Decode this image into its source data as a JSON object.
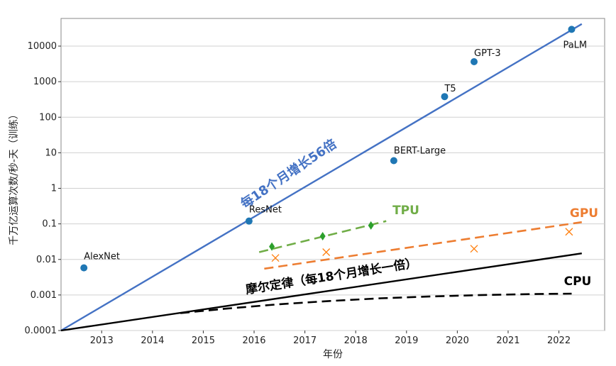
{
  "chart_data": {
    "type": "scatter",
    "xlabel": "年份",
    "ylabel": "千万亿运算次数/秒-天（训练）",
    "x_ticks": [
      "2013",
      "2014",
      "2015",
      "2016",
      "2017",
      "2018",
      "2019",
      "2020",
      "2021",
      "2022"
    ],
    "y_ticks": [
      "0.0001",
      "0.001",
      "0.01",
      "0.1",
      "1",
      "10",
      "100",
      "1000",
      "10000"
    ],
    "xlim": [
      2012.2,
      2022.9
    ],
    "ylim": [
      0.0001,
      60000
    ],
    "y_scale": "log",
    "grid": "horizontal",
    "series": [
      {
        "name": "",
        "type": "scatter",
        "color": "#1f77b4",
        "marker": "circle",
        "points": [
          {
            "label": "AlexNet",
            "x": 2012.65,
            "y": 0.0058
          },
          {
            "label": "ResNet",
            "x": 2015.9,
            "y": 0.12
          },
          {
            "label": "BERT-Large",
            "x": 2018.75,
            "y": 6.0
          },
          {
            "label": "T5",
            "x": 2019.75,
            "y": 380
          },
          {
            "label": "GPT-3",
            "x": 2020.33,
            "y": 3640
          },
          {
            "label": "PaLM",
            "x": 2022.25,
            "y": 29600
          }
        ]
      },
      {
        "name": "TPU",
        "type": "scatter",
        "color": "#2ca02c",
        "marker": "diamond",
        "points": [
          {
            "x": 2016.35,
            "y": 0.023
          },
          {
            "x": 2017.35,
            "y": 0.045
          },
          {
            "x": 2018.3,
            "y": 0.09
          }
        ]
      },
      {
        "name": "GPU",
        "type": "scatter",
        "color": "#ff7f0e",
        "marker": "x",
        "points": [
          {
            "x": 2016.42,
            "y": 0.011
          },
          {
            "x": 2017.42,
            "y": 0.016
          },
          {
            "x": 2020.33,
            "y": 0.02
          },
          {
            "x": 2022.2,
            "y": 0.06
          }
        ]
      }
    ],
    "lines": [
      {
        "label": "每18个月增长56倍",
        "color": "#4472c4",
        "style": "solid",
        "x": [
          2012.2,
          2022.45
        ],
        "y": [
          0.0001,
          42000
        ]
      },
      {
        "label": "摩尔定律（每18个月增长一倍）",
        "color": "#000000",
        "style": "solid",
        "x": [
          2012.2,
          2022.45
        ],
        "y": [
          0.0001,
          0.0148
        ]
      },
      {
        "label": "CPU",
        "color": "#000000",
        "style": "dashed",
        "x": [
          2014.55,
          2015.5,
          2016.5,
          2017.5,
          2018.5,
          2019.5,
          2020.5,
          2021.5,
          2022.25
        ],
        "y": [
          0.00031,
          0.00042,
          0.00055,
          0.00068,
          0.00081,
          0.00091,
          0.001,
          0.00106,
          0.00109
        ]
      },
      {
        "label": "GPU",
        "color": "#ed7d31",
        "style": "dashed",
        "x": [
          2016.2,
          2022.45
        ],
        "y": [
          0.0055,
          0.112
        ]
      },
      {
        "label": "TPU",
        "color": "#70ad47",
        "style": "dashed",
        "x": [
          2016.1,
          2018.6
        ],
        "y": [
          0.016,
          0.12
        ]
      }
    ],
    "annotations": {
      "exp_line": "每18个月增长56倍",
      "moore": "摩尔定律（每18个月增长一倍）",
      "tpu": "TPU",
      "gpu": "GPU",
      "cpu": "CPU"
    }
  },
  "colors": {
    "blue_line": "#4472c4",
    "blue_label": "#4472c4",
    "tpu": "#70ad47",
    "gpu": "#ed7d31",
    "point": "#1f77b4"
  }
}
